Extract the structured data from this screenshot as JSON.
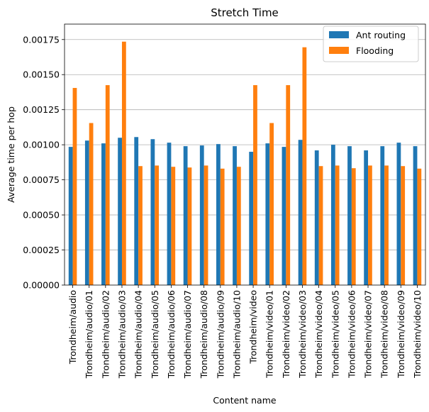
{
  "chart_data": {
    "type": "bar",
    "title": "Stretch Time",
    "xlabel": "Content name",
    "ylabel": "Average time per hop",
    "ylim": [
      0,
      0.00186
    ],
    "yticks": [
      0.0,
      0.00025,
      0.0005,
      0.00075,
      0.001,
      0.00125,
      0.0015,
      0.00175
    ],
    "ytick_labels": [
      "0.00000",
      "0.00025",
      "0.00050",
      "0.00075",
      "0.00100",
      "0.00125",
      "0.00150",
      "0.00175"
    ],
    "grid": "y",
    "legend_position": "top-right",
    "categories": [
      "Trondheim/audio",
      "Trondheim/audio/01",
      "Trondheim/audio/02",
      "Trondheim/audio/03",
      "Trondheim/audio/04",
      "Trondheim/audio/05",
      "Trondheim/audio/06",
      "Trondheim/audio/07",
      "Trondheim/audio/08",
      "Trondheim/audio/09",
      "Trondheim/audio/10",
      "Trondheim/video",
      "Trondheim/video/01",
      "Trondheim/video/02",
      "Trondheim/video/03",
      "Trondheim/video/04",
      "Trondheim/video/05",
      "Trondheim/video/06",
      "Trondheim/video/07",
      "Trondheim/video/08",
      "Trondheim/video/09",
      "Trondheim/video/10"
    ],
    "series": [
      {
        "name": "Ant routing",
        "color": "#1f77b4",
        "values": [
          0.000985,
          0.00103,
          0.00101,
          0.00105,
          0.001055,
          0.00104,
          0.001015,
          0.00099,
          0.000995,
          0.001005,
          0.00099,
          0.00095,
          0.00101,
          0.000985,
          0.001035,
          0.00096,
          0.001,
          0.00099,
          0.00096,
          0.00099,
          0.001015,
          0.00099
        ]
      },
      {
        "name": "Flooding",
        "color": "#ff7f0e",
        "values": [
          0.001405,
          0.001155,
          0.001425,
          0.001735,
          0.000848,
          0.000852,
          0.000843,
          0.000838,
          0.000852,
          0.00083,
          0.000843,
          0.001425,
          0.001155,
          0.001425,
          0.001695,
          0.000848,
          0.000852,
          0.000833,
          0.000852,
          0.000852,
          0.000848,
          0.00083
        ]
      }
    ]
  }
}
